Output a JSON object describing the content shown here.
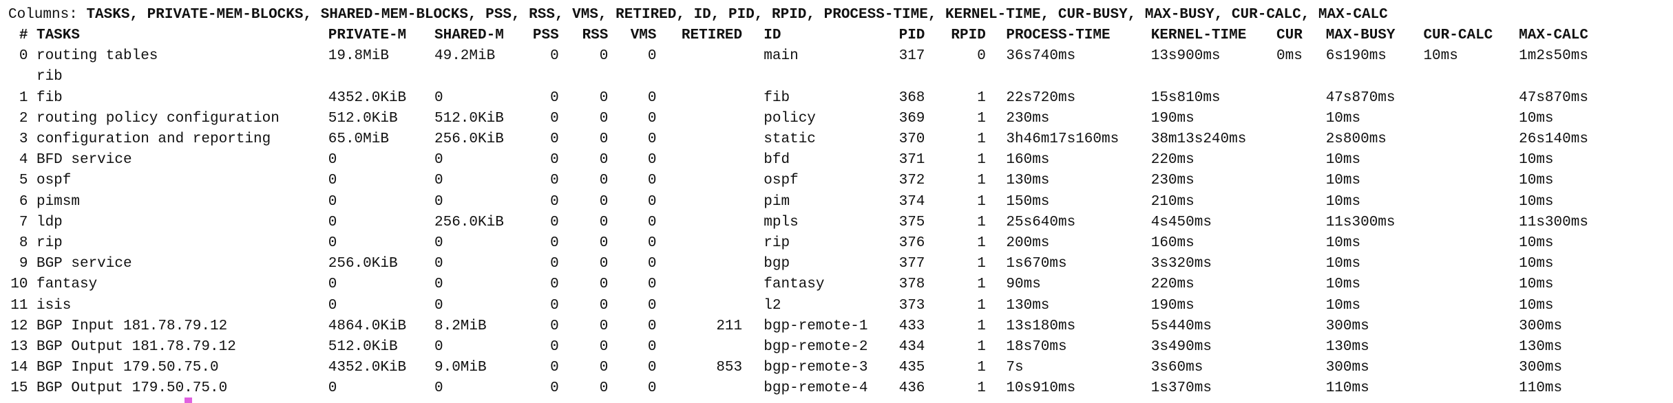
{
  "columns_line": {
    "label": "Columns:",
    "list": "TASKS, PRIVATE-MEM-BLOCKS, SHARED-MEM-BLOCKS, PSS, RSS, VMS, RETIRED, ID, PID, RPID, PROCESS-TIME, KERNEL-TIME, CUR-BUSY, MAX-BUSY, CUR-CALC, MAX-CALC"
  },
  "table": {
    "header": [
      "#",
      "TASKS",
      "PRIVATE-M",
      "SHARED-M",
      "PSS",
      "RSS",
      "VMS",
      "RETIRED",
      "ID",
      "PID",
      "RPID",
      "PROCESS-TIME",
      "KERNEL-TIME",
      "CUR",
      "MAX-BUSY",
      "CUR-CALC",
      "MAX-CALC"
    ],
    "rows": [
      [
        "0",
        "routing tables\nrib",
        "19.8MiB",
        "49.2MiB",
        "0",
        "0",
        "0",
        null,
        "main",
        "317",
        "0",
        "36s740ms",
        "13s900ms",
        "0ms",
        "6s190ms",
        "10ms",
        "1m2s50ms"
      ],
      [
        "1",
        "fib",
        "4352.0KiB",
        "0",
        "0",
        "0",
        "0",
        null,
        "fib",
        "368",
        "1",
        "22s720ms",
        "15s810ms",
        null,
        "47s870ms",
        null,
        "47s870ms"
      ],
      [
        "2",
        "routing policy configuration",
        "512.0KiB",
        "512.0KiB",
        "0",
        "0",
        "0",
        null,
        "policy",
        "369",
        "1",
        "230ms",
        "190ms",
        null,
        "10ms",
        null,
        "10ms"
      ],
      [
        "3",
        "configuration and reporting",
        "65.0MiB",
        "256.0KiB",
        "0",
        "0",
        "0",
        null,
        "static",
        "370",
        "1",
        "3h46m17s160ms",
        "38m13s240ms",
        null,
        "2s800ms",
        null,
        "26s140ms"
      ],
      [
        "4",
        "BFD service",
        "0",
        "0",
        "0",
        "0",
        "0",
        null,
        "bfd",
        "371",
        "1",
        "160ms",
        "220ms",
        null,
        "10ms",
        null,
        "10ms"
      ],
      [
        "5",
        "ospf",
        "0",
        "0",
        "0",
        "0",
        "0",
        null,
        "ospf",
        "372",
        "1",
        "130ms",
        "230ms",
        null,
        "10ms",
        null,
        "10ms"
      ],
      [
        "6",
        "pimsm",
        "0",
        "0",
        "0",
        "0",
        "0",
        null,
        "pim",
        "374",
        "1",
        "150ms",
        "210ms",
        null,
        "10ms",
        null,
        "10ms"
      ],
      [
        "7",
        "ldp",
        "0",
        "256.0KiB",
        "0",
        "0",
        "0",
        null,
        "mpls",
        "375",
        "1",
        "25s640ms",
        "4s450ms",
        null,
        "11s300ms",
        null,
        "11s300ms"
      ],
      [
        "8",
        "rip",
        "0",
        "0",
        "0",
        "0",
        "0",
        null,
        "rip",
        "376",
        "1",
        "200ms",
        "160ms",
        null,
        "10ms",
        null,
        "10ms"
      ],
      [
        "9",
        "BGP service",
        "256.0KiB",
        "0",
        "0",
        "0",
        "0",
        null,
        "bgp",
        "377",
        "1",
        "1s670ms",
        "3s320ms",
        null,
        "10ms",
        null,
        "10ms"
      ],
      [
        "10",
        "fantasy",
        "0",
        "0",
        "0",
        "0",
        "0",
        null,
        "fantasy",
        "378",
        "1",
        "90ms",
        "220ms",
        null,
        "10ms",
        null,
        "10ms"
      ],
      [
        "11",
        "isis",
        "0",
        "0",
        "0",
        "0",
        "0",
        null,
        "l2",
        "373",
        "1",
        "130ms",
        "190ms",
        null,
        "10ms",
        null,
        "10ms"
      ],
      [
        "12",
        "BGP Input 181.78.79.12",
        "4864.0KiB",
        "8.2MiB",
        "0",
        "0",
        "0",
        "211",
        "bgp-remote-1",
        "433",
        "1",
        "13s180ms",
        "5s440ms",
        null,
        "300ms",
        null,
        "300ms"
      ],
      [
        "13",
        "BGP Output 181.78.79.12",
        "512.0KiB",
        "0",
        "0",
        "0",
        "0",
        null,
        "bgp-remote-2",
        "434",
        "1",
        "18s70ms",
        "3s490ms",
        null,
        "130ms",
        null,
        "130ms"
      ],
      [
        "14",
        "BGP Input 179.50.75.0",
        "4352.0KiB",
        "9.0MiB",
        "0",
        "0",
        "0",
        "853",
        "bgp-remote-3",
        "435",
        "1",
        "7s",
        "3s60ms",
        null,
        "300ms",
        null,
        "300ms"
      ],
      [
        "15",
        "BGP Output 179.50.75.0",
        "0",
        "0",
        "0",
        "0",
        "0",
        null,
        "bgp-remote-4",
        "436",
        "1",
        "10s910ms",
        "1s370ms",
        null,
        "110ms",
        null,
        "110ms"
      ]
    ]
  }
}
